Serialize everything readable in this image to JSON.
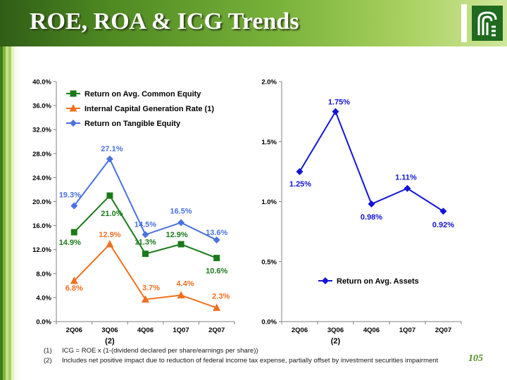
{
  "title": "ROE, ROA & ICG Trends",
  "page_number": "105",
  "footnotes": [
    {
      "num": "(1)",
      "text": "ICG = ROE x (1-(dividend declared per share/earnings per share))"
    },
    {
      "num": "(2)",
      "text": "Includes net positive impact due to reduction of federal income tax expense, partially offset by investment securities impairment"
    }
  ],
  "chart_data": [
    {
      "type": "line",
      "categories": [
        "2Q06",
        "3Q06",
        "4Q06",
        "1Q07",
        "2Q07"
      ],
      "category_notes": [
        "",
        "(2)",
        "",
        "",
        ""
      ],
      "ylim": [
        0,
        40
      ],
      "yticks": [
        "0.0%",
        "4.0%",
        "8.0%",
        "12.0%",
        "16.0%",
        "20.0%",
        "24.0%",
        "28.0%",
        "32.0%",
        "36.0%",
        "40.0%"
      ],
      "legend_position": "top-left",
      "series": [
        {
          "name": "Return on Avg. Common Equity",
          "color": "#1a7a1a",
          "marker": "square",
          "values": [
            14.9,
            21.0,
            11.3,
            12.9,
            10.6
          ],
          "labels": [
            "14.9%",
            "21.0%",
            "11.3%",
            "12.9%",
            "10.6%"
          ]
        },
        {
          "name": "Internal Capital Generation Rate (1)",
          "color": "#f07020",
          "marker": "triangle",
          "values": [
            6.8,
            12.9,
            3.7,
            4.4,
            2.3
          ],
          "labels": [
            "6.8%",
            "12.9%",
            "3.7%",
            "4.4%",
            "2.3%"
          ]
        },
        {
          "name": "Return on Tangible Equity",
          "color": "#4a72e0",
          "marker": "diamond",
          "values": [
            19.3,
            27.1,
            14.5,
            16.5,
            13.6
          ],
          "labels": [
            "19.3%",
            "27.1%",
            "14.5%",
            "16.5%",
            "13.6%"
          ]
        }
      ]
    },
    {
      "type": "line",
      "categories": [
        "2Q06",
        "3Q06",
        "4Q06",
        "1Q07",
        "2Q07"
      ],
      "category_notes": [
        "",
        "(2)",
        "",
        "",
        ""
      ],
      "ylim": [
        0,
        2
      ],
      "yticks": [
        "0.0%",
        "0.5%",
        "1.0%",
        "1.5%",
        "2.0%"
      ],
      "legend_position": "bottom-center",
      "series": [
        {
          "name": "Return on Avg. Assets",
          "color": "#1414d8",
          "marker": "diamond",
          "values": [
            1.25,
            1.75,
            0.98,
            1.11,
            0.92
          ],
          "labels": [
            "1.25%",
            "1.75%",
            "0.98%",
            "1.11%",
            "0.92%"
          ]
        }
      ]
    }
  ]
}
